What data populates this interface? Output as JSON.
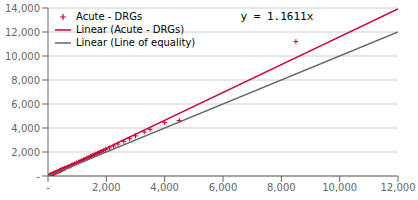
{
  "chart_data": {
    "type": "scatter",
    "annotation": "y = 1.1611x",
    "series": [
      {
        "name": "Acute - DRGs",
        "type": "scatter",
        "marker": "plus",
        "color": "#cc0033",
        "values": [
          [
            50,
            60
          ],
          [
            80,
            90
          ],
          [
            100,
            110
          ],
          [
            130,
            145
          ],
          [
            160,
            175
          ],
          [
            190,
            210
          ],
          [
            220,
            245
          ],
          [
            250,
            275
          ],
          [
            280,
            310
          ],
          [
            310,
            345
          ],
          [
            340,
            375
          ],
          [
            370,
            410
          ],
          [
            400,
            445
          ],
          [
            430,
            480
          ],
          [
            460,
            515
          ],
          [
            490,
            545
          ],
          [
            530,
            590
          ],
          [
            570,
            635
          ],
          [
            610,
            680
          ],
          [
            660,
            735
          ],
          [
            710,
            790
          ],
          [
            760,
            845
          ],
          [
            810,
            900
          ],
          [
            860,
            955
          ],
          [
            920,
            1020
          ],
          [
            980,
            1090
          ],
          [
            1040,
            1155
          ],
          [
            1100,
            1220
          ],
          [
            1160,
            1290
          ],
          [
            1220,
            1355
          ],
          [
            1280,
            1420
          ],
          [
            1340,
            1490
          ],
          [
            1400,
            1555
          ],
          [
            1460,
            1625
          ],
          [
            1520,
            1690
          ],
          [
            1580,
            1760
          ],
          [
            1640,
            1825
          ],
          [
            1700,
            1890
          ],
          [
            1760,
            1960
          ],
          [
            1820,
            2025
          ],
          [
            1900,
            2110
          ],
          [
            1980,
            2200
          ],
          [
            2100,
            2335
          ],
          [
            2250,
            2500
          ],
          [
            2400,
            2665
          ],
          [
            2600,
            2890
          ],
          [
            2800,
            3110
          ],
          [
            3000,
            3340
          ],
          [
            3300,
            3670
          ],
          [
            3500,
            3890
          ],
          [
            4000,
            4450
          ],
          [
            4500,
            4620
          ],
          [
            8500,
            11200
          ]
        ]
      },
      {
        "name": "Linear (Acute - DRGs)",
        "type": "line",
        "line_style": "solid",
        "color": "#cc0033",
        "values": [
          [
            0,
            0
          ],
          [
            12000,
            13933.2
          ]
        ]
      },
      {
        "name": "Linear (Line of equality)",
        "type": "line",
        "line_style": "solid",
        "color": "#666666",
        "values": [
          [
            0,
            0
          ],
          [
            12000,
            12000
          ]
        ]
      }
    ],
    "xlim": [
      0,
      12000
    ],
    "ylim": [
      0,
      14000
    ],
    "xticks": [
      {
        "value": 0,
        "label": "-"
      },
      {
        "value": 2000,
        "label": "2,000"
      },
      {
        "value": 4000,
        "label": "4,000"
      },
      {
        "value": 6000,
        "label": "6,000"
      },
      {
        "value": 8000,
        "label": "8,000"
      },
      {
        "value": 10000,
        "label": "10,000"
      },
      {
        "value": 12000,
        "label": "12,000"
      }
    ],
    "yticks": [
      {
        "value": 0,
        "label": "-"
      },
      {
        "value": 2000,
        "label": "2,000"
      },
      {
        "value": 4000,
        "label": "4,000"
      },
      {
        "value": 6000,
        "label": "6,000"
      },
      {
        "value": 8000,
        "label": "8,000"
      },
      {
        "value": 10000,
        "label": "10,000"
      },
      {
        "value": 12000,
        "label": "12,000"
      },
      {
        "value": 14000,
        "label": "14,000"
      }
    ],
    "grid": "y",
    "legend": "upper left"
  }
}
